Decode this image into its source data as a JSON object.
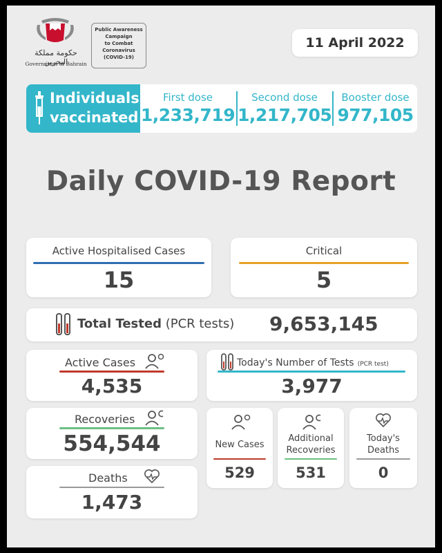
{
  "header": {
    "gov_arabic": "حكومة مملكة البحرين",
    "gov_english": "Government of Bahrain",
    "campaign": [
      "Public Awareness",
      "Campaign",
      "to Combat",
      "Coronavirus",
      "(COVID-19)"
    ],
    "date": "11 April 2022"
  },
  "vaccination": {
    "title_line1": "Individuals",
    "title_line2": "vaccinated",
    "first_dose_label": "First dose",
    "first_dose_value": "1,233,719",
    "second_dose_label": "Second dose",
    "second_dose_value": "1,217,705",
    "booster_label": "Booster dose",
    "booster_value": "977,105"
  },
  "report_title": "Daily COVID-19 Report",
  "hospitalised": {
    "label": "Active Hospitalised Cases",
    "value": "15"
  },
  "critical": {
    "label": "Critical",
    "value": "5"
  },
  "total_tested": {
    "label": "Total Tested",
    "label_suffix": "(PCR tests)",
    "value": "9,653,145"
  },
  "active_cases": {
    "label": "Active Cases",
    "value": "4,535"
  },
  "todays_tests": {
    "label": "Today's Number of Tests",
    "label_suffix": "(PCR test)",
    "value": "3,977"
  },
  "recoveries": {
    "label": "Recoveries",
    "value": "554,544"
  },
  "deaths": {
    "label": "Deaths",
    "value": "1,473"
  },
  "new_cases": {
    "label": "New Cases",
    "value": "529"
  },
  "additional_recoveries": {
    "label_line1": "Additional",
    "label_line2": "Recoveries",
    "value": "531"
  },
  "todays_deaths": {
    "label_line1": "Today's",
    "label_line2": "Deaths",
    "value": "0"
  },
  "colors": {
    "teal": "#33b6c9",
    "blue": "#2f6db3",
    "orange": "#e5a125",
    "red": "#c0392b",
    "green": "#6cbf84",
    "gray": "#999999"
  }
}
